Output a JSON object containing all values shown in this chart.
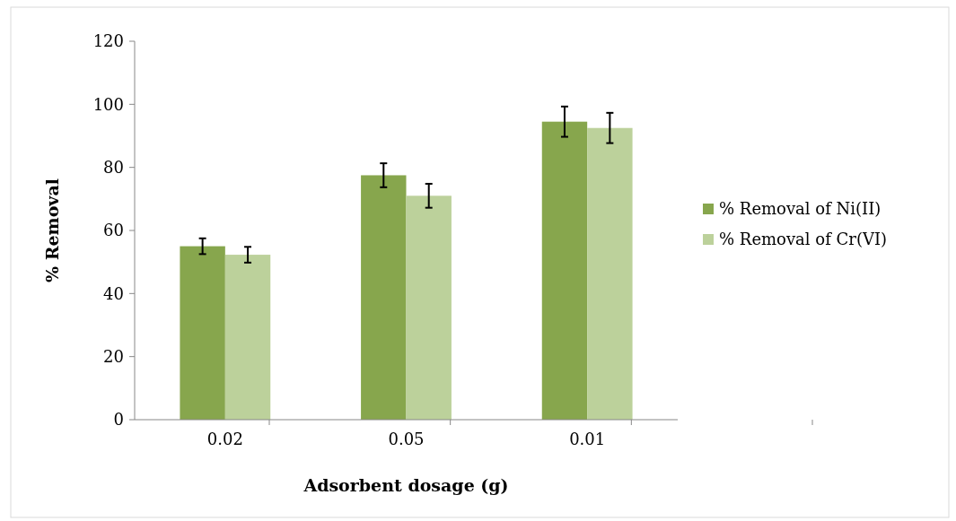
{
  "chart_data": {
    "type": "bar",
    "xlabel": "Adsorbent dosage (g)",
    "ylabel": "% Removal",
    "categories": [
      "0.02",
      "0.05",
      "0.01"
    ],
    "series": [
      {
        "name": "% Removal of Ni(II)",
        "color": "#87a64d",
        "values": [
          55,
          77.5,
          94.5
        ],
        "errors": [
          2.5,
          3.8,
          4.8
        ]
      },
      {
        "name": "% Removal of Cr(VI)",
        "color": "#bcd19b",
        "values": [
          52.3,
          71,
          92.5
        ],
        "errors": [
          2.5,
          3.8,
          4.8
        ]
      }
    ],
    "ylim": [
      0,
      120
    ],
    "yticks": [
      0,
      20,
      40,
      60,
      80,
      100,
      120
    ],
    "grid": false,
    "legend": "right"
  }
}
